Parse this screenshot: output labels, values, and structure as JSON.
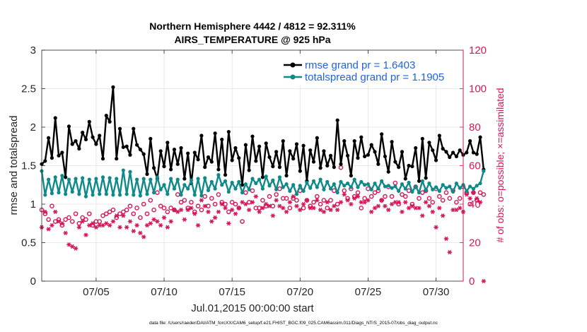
{
  "chart_data": {
    "type": "line",
    "title_line1": "Northern Hemisphere 4442 / 4812 = 92.311%",
    "title_line2": "AIRS_TEMPERATURE @ 925 hPa",
    "xlabel": "Jul.01,2015 00:00:00 start",
    "ylabel": "rmse and totalspread",
    "y2label": "# of obs: o=possible; ×=assimilated",
    "xlim": [
      1,
      32
    ],
    "ylim": [
      0,
      3
    ],
    "y2lim": [
      0,
      120
    ],
    "x_ticks": [
      {
        "value": 5,
        "label": "07/05"
      },
      {
        "value": 10,
        "label": "07/10"
      },
      {
        "value": 15,
        "label": "07/15"
      },
      {
        "value": 20,
        "label": "07/20"
      },
      {
        "value": 25,
        "label": "07/25"
      },
      {
        "value": 30,
        "label": "07/30"
      }
    ],
    "y_ticks": [
      "0",
      "0.5",
      "1",
      "1.5",
      "2",
      "2.5",
      "3"
    ],
    "y2_ticks": [
      "0",
      "20",
      "40",
      "60",
      "80",
      "100",
      "120"
    ],
    "colors": {
      "rmse": "#000000",
      "spread": "#0e8a88",
      "obs": "#d6145a",
      "legend_text": "#1f63e0",
      "grid": "#e3e3e3"
    },
    "series": [
      {
        "name": "rmse grand pr = 1.6403",
        "key": "rmse",
        "start": 1.0,
        "step": 0.25,
        "values": [
          1.52,
          1.56,
          1.86,
          1.6,
          2.12,
          1.63,
          1.67,
          1.35,
          2.01,
          1.78,
          1.82,
          1.72,
          1.93,
          1.84,
          2.07,
          1.87,
          1.78,
          1.89,
          1.59,
          2.15,
          2.07,
          2.52,
          1.59,
          1.98,
          1.74,
          1.75,
          1.64,
          1.98,
          1.77,
          1.71,
          1.65,
          1.39,
          1.85,
          1.47,
          1.33,
          1.69,
          1.49,
          1.8,
          1.45,
          1.71,
          1.52,
          1.73,
          1.33,
          1.66,
          1.27,
          1.67,
          1.58,
          1.89,
          1.48,
          1.61,
          1.55,
          1.92,
          1.45,
          1.84,
          1.38,
          1.94,
          1.57,
          1.73,
          1.6,
          1.25,
          1.77,
          1.44,
          1.88,
          1.56,
          1.75,
          1.35,
          1.79,
          1.61,
          1.49,
          1.68,
          1.48,
          1.82,
          1.37,
          1.69,
          1.59,
          1.78,
          1.43,
          1.76,
          1.3,
          1.7,
          1.55,
          1.86,
          1.47,
          1.69,
          1.5,
          1.63,
          1.48,
          2.09,
          1.52,
          1.82,
          1.63,
          1.37,
          1.82,
          1.6,
          1.87,
          1.62,
          1.64,
          1.77,
          1.68,
          1.52,
          1.91,
          1.62,
          1.42,
          1.81,
          1.55,
          1.48,
          1.68,
          1.33,
          1.5,
          1.49,
          1.73,
          1.3,
          1.85,
          1.34,
          1.8,
          1.7,
          1.57,
          1.89,
          1.72,
          1.68,
          1.61,
          1.67,
          1.62,
          1.7,
          1.64,
          1.67,
          1.82,
          1.67,
          1.65,
          1.87,
          1.45
        ]
      },
      {
        "name": "totalspread grand pr = 1.1905",
        "key": "spread",
        "start": 1.0,
        "step": 0.25,
        "values": [
          1.43,
          1.12,
          1.32,
          1.14,
          1.35,
          1.15,
          1.37,
          1.13,
          1.32,
          1.16,
          1.33,
          1.13,
          1.34,
          1.1,
          1.32,
          1.12,
          1.33,
          1.13,
          1.35,
          1.13,
          1.34,
          1.12,
          1.33,
          1.12,
          1.44,
          1.13,
          1.42,
          1.12,
          1.32,
          1.11,
          1.33,
          1.13,
          1.32,
          1.15,
          1.35,
          1.19,
          1.25,
          1.13,
          1.33,
          1.2,
          1.32,
          1.12,
          1.25,
          1.2,
          1.31,
          1.12,
          1.33,
          1.11,
          1.34,
          1.18,
          1.29,
          1.2,
          1.38,
          1.25,
          1.3,
          1.16,
          1.28,
          1.2,
          1.29,
          1.15,
          1.26,
          1.19,
          1.33,
          1.27,
          1.32,
          1.2,
          1.36,
          1.24,
          1.31,
          1.19,
          1.35,
          1.22,
          1.26,
          1.17,
          1.25,
          1.13,
          1.24,
          1.17,
          1.28,
          1.21,
          1.3,
          1.22,
          1.32,
          1.19,
          1.29,
          1.2,
          1.26,
          1.15,
          1.29,
          1.24,
          1.27,
          1.22,
          1.32,
          1.22,
          1.29,
          1.25,
          1.26,
          1.19,
          1.27,
          1.2,
          1.3,
          1.23,
          1.24,
          1.21,
          1.23,
          1.17,
          1.26,
          1.2,
          1.28,
          1.16,
          1.23,
          1.15,
          1.3,
          1.18,
          1.27,
          1.19,
          1.22,
          1.17,
          1.25,
          1.21,
          1.23,
          1.16,
          1.27,
          1.21,
          1.25,
          1.17,
          1.23,
          1.2,
          1.24,
          1.27,
          1.43
        ]
      }
    ],
    "obs_possible": {
      "start": 1.0,
      "step": 0.25,
      "values": [
        37,
        35,
        32,
        39,
        31,
        32,
        29,
        32,
        33,
        31,
        35,
        30,
        33,
        32,
        35,
        29,
        31,
        31,
        34,
        35,
        36,
        37,
        33,
        35,
        36,
        37,
        39,
        35,
        38,
        33,
        40,
        35,
        42,
        37,
        46,
        39,
        38,
        36,
        38,
        37,
        45,
        41,
        42,
        38,
        41,
        36,
        39,
        37,
        44,
        39,
        43,
        40,
        45,
        41,
        40,
        36,
        41,
        40,
        38,
        31,
        46,
        41,
        47,
        38,
        38,
        42,
        39,
        44,
        39,
        45,
        48,
        43,
        43,
        38,
        43,
        42,
        47,
        38,
        42,
        39,
        41,
        44,
        40,
        42,
        38,
        42,
        47,
        40,
        59,
        47,
        43,
        48,
        44,
        46,
        38,
        43,
        48,
        44,
        46,
        47,
        42,
        44,
        49,
        44,
        51,
        40,
        45,
        44,
        47,
        40,
        49,
        43,
        46,
        47,
        43,
        41,
        48,
        44,
        42,
        46,
        43,
        47,
        41,
        43,
        49,
        46,
        40,
        46,
        42,
        46,
        45
      ]
    },
    "obs_assimilated": {
      "start": 1.0,
      "step": 0.25,
      "values": [
        28,
        36,
        27,
        29,
        36,
        31,
        30,
        25,
        19,
        18,
        17,
        28,
        31,
        24,
        29,
        30,
        28,
        29,
        29,
        30,
        29,
        31,
        34,
        28,
        34,
        28,
        31,
        26,
        29,
        25,
        23,
        29,
        30,
        32,
        31,
        29,
        33,
        28,
        31,
        37,
        36,
        37,
        32,
        37,
        38,
        35,
        29,
        42,
        39,
        36,
        31,
        33,
        36,
        40,
        38,
        30,
        37,
        35,
        38,
        41,
        40,
        37,
        41,
        44,
        36,
        38,
        40,
        39,
        34,
        42,
        39,
        38,
        36,
        41,
        44,
        39,
        37,
        40,
        42,
        38,
        38,
        42,
        37,
        36,
        41,
        37,
        39,
        37,
        41,
        45,
        42,
        40,
        43,
        44,
        41,
        41,
        42,
        36,
        38,
        39,
        42,
        39,
        37,
        40,
        41,
        41,
        36,
        41,
        38,
        39,
        38,
        38,
        34,
        41,
        39,
        36,
        28,
        38,
        34,
        22,
        15,
        37,
        37,
        38,
        36,
        45,
        43,
        46,
        43,
        41,
        0
      ]
    },
    "legend_position": "top-right",
    "grid": true,
    "footnote": "data file: /Users/raeder/DAI/ATM_forcXX/CAM6_setup/f.e21.FHIST_BGC.f09_025.CAM6assim.011/Diags_NTrS_2015-07/obs_diag_output.nc"
  }
}
